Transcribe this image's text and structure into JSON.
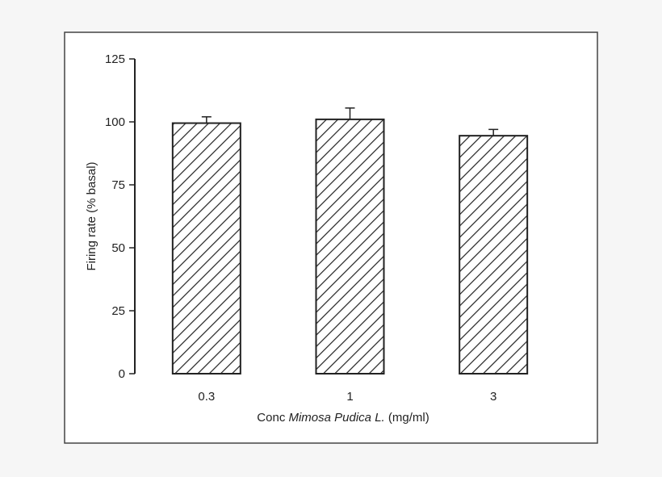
{
  "chart_data": {
    "type": "bar",
    "categories": [
      "0.3",
      "1",
      "3"
    ],
    "values": [
      99.5,
      101,
      94.5
    ],
    "errors": [
      2.5,
      4.5,
      2.5
    ],
    "xlabel": {
      "prefix": "Conc ",
      "italic": "Mimosa Pudica L.",
      "suffix": " (mg/ml)"
    },
    "ylabel": "Firing rate (% basal)",
    "ylim": [
      0,
      125
    ],
    "yticks": [
      "0",
      "25",
      "50",
      "75",
      "100",
      "125"
    ],
    "grid": false,
    "legend": "none",
    "bar_pattern": "diagonal-hatch",
    "colors": {
      "background": "#f6f6f6",
      "plot_background": "#ffffff",
      "bar_stroke": "#222222",
      "hatch": "#222222",
      "frame": "#444444"
    }
  }
}
